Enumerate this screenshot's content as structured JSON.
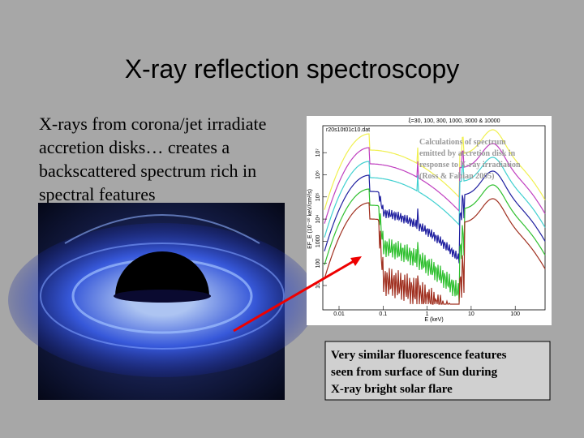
{
  "slide": {
    "title": "X-ray reflection spectroscopy",
    "body": {
      "lines": [
        "X-rays from corona/jet irradiate",
        "accretion disks… creates a",
        "backscattered spectrum rich in",
        "spectral features"
      ]
    },
    "figure": {
      "header": "ξ=30, 100, 300, 1000, 3000 & 10000",
      "file": "r20s10t01c10.dat",
      "y_label": "EF_E (10⁻²⁰ keV/cm²/s)",
      "x_label": "E (keV)",
      "yticks": [
        "10",
        "100",
        "1000",
        "10⁴",
        "10⁵",
        "10⁶",
        "10⁷"
      ],
      "xticks": [
        "0.01",
        "0.1",
        "1",
        "10",
        "100"
      ],
      "annotation": [
        "Calculations of spectrum",
        "emitted by accretion disk in",
        "response to X-ray irradiation",
        "(Ross & Fabian 2005)"
      ]
    },
    "callout": {
      "lines": [
        "Very similar fluorescence features",
        "seen from surface of Sun during",
        "X-ray bright solar flare"
      ]
    }
  }
}
